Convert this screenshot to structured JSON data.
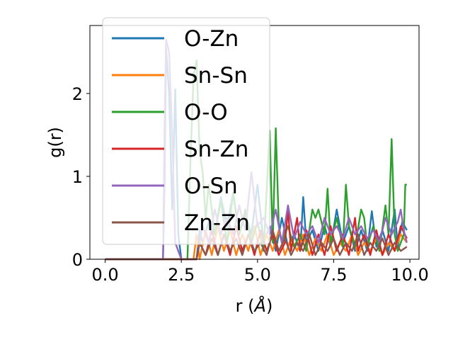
{
  "chart_data": {
    "type": "line",
    "xlabel": "r (",
    "xlabel_unit": "Å",
    "xlabel_close": ")",
    "ylabel": "g(r)",
    "xlim": [
      -0.5,
      10.3
    ],
    "ylim": [
      0,
      2.82
    ],
    "xticks": [
      0.0,
      2.5,
      5.0,
      7.5,
      10.0
    ],
    "xtick_labels": [
      "0.0",
      "2.5",
      "5.0",
      "7.5",
      "10.0"
    ],
    "yticks": [
      0,
      1,
      2
    ],
    "ytick_labels": [
      "0",
      "1",
      "2"
    ],
    "legend_position": "upper-left",
    "series": [
      {
        "name": "O-Zn",
        "color": "#1f77b4",
        "points": [
          [
            0,
            0
          ],
          [
            1.9,
            0
          ],
          [
            1.95,
            0.9
          ],
          [
            2.0,
            2.55
          ],
          [
            2.1,
            2.0
          ],
          [
            2.2,
            0.6
          ],
          [
            2.3,
            2.05
          ],
          [
            2.4,
            0.3
          ],
          [
            2.5,
            0
          ],
          [
            3.0,
            0
          ],
          [
            3.1,
            0.35
          ],
          [
            3.2,
            0.2
          ],
          [
            3.4,
            0.45
          ],
          [
            3.6,
            0.3
          ],
          [
            3.8,
            0.75
          ],
          [
            4.0,
            0.4
          ],
          [
            4.2,
            0.8
          ],
          [
            4.4,
            0.3
          ],
          [
            4.6,
            0.55
          ],
          [
            4.8,
            0.3
          ],
          [
            5.0,
            0.9
          ],
          [
            5.2,
            0.2
          ],
          [
            5.4,
            0.4
          ],
          [
            5.6,
            0.1
          ],
          [
            5.8,
            0.5
          ],
          [
            6.0,
            0.15
          ],
          [
            6.2,
            0.3
          ],
          [
            6.4,
            0.1
          ],
          [
            6.5,
            0.75
          ],
          [
            6.6,
            0.2
          ],
          [
            6.8,
            0.35
          ],
          [
            7.0,
            0.1
          ],
          [
            7.2,
            0.4
          ],
          [
            7.4,
            0.15
          ],
          [
            7.6,
            0.6
          ],
          [
            7.8,
            0.2
          ],
          [
            8.0,
            0.4
          ],
          [
            8.2,
            0.1
          ],
          [
            8.4,
            0.35
          ],
          [
            8.6,
            0.1
          ],
          [
            8.75,
            0.58
          ],
          [
            8.9,
            0.15
          ],
          [
            9.1,
            0.35
          ],
          [
            9.3,
            0.1
          ],
          [
            9.5,
            0.6
          ],
          [
            9.6,
            0.15
          ],
          [
            9.75,
            0.45
          ],
          [
            9.9,
            0.35
          ]
        ]
      },
      {
        "name": "Sn-Sn",
        "color": "#ff7f0e",
        "points": [
          [
            0,
            0
          ],
          [
            2.9,
            0
          ],
          [
            3.0,
            0.3
          ],
          [
            3.1,
            0
          ],
          [
            3.3,
            0.35
          ],
          [
            3.5,
            0.05
          ],
          [
            3.7,
            0.4
          ],
          [
            3.9,
            0.1
          ],
          [
            4.1,
            0.35
          ],
          [
            4.3,
            0.05
          ],
          [
            4.5,
            0.3
          ],
          [
            4.7,
            0.1
          ],
          [
            4.9,
            0.4
          ],
          [
            5.1,
            0.05
          ],
          [
            5.3,
            0.3
          ],
          [
            5.5,
            0.1
          ],
          [
            5.7,
            0.35
          ],
          [
            5.9,
            0.05
          ],
          [
            6.1,
            0.25
          ],
          [
            6.3,
            0.1
          ],
          [
            6.5,
            0.3
          ],
          [
            6.7,
            0.05
          ],
          [
            6.9,
            0.25
          ],
          [
            7.1,
            0.1
          ],
          [
            7.3,
            0.3
          ],
          [
            7.5,
            0.05
          ],
          [
            7.7,
            0.2
          ],
          [
            7.9,
            0.1
          ],
          [
            8.1,
            0.3
          ],
          [
            8.3,
            0.05
          ],
          [
            8.5,
            0.2
          ],
          [
            8.7,
            0.1
          ],
          [
            8.9,
            0.25
          ],
          [
            9.1,
            0.05
          ],
          [
            9.3,
            0.2
          ],
          [
            9.5,
            0.1
          ],
          [
            9.7,
            0.3
          ],
          [
            9.9,
            0.2
          ]
        ]
      },
      {
        "name": "O-O",
        "color": "#2ca02c",
        "points": [
          [
            0,
            0
          ],
          [
            2.7,
            0
          ],
          [
            2.8,
            1.2
          ],
          [
            2.9,
            2.2
          ],
          [
            3.0,
            2.4
          ],
          [
            3.1,
            1.3
          ],
          [
            3.2,
            1.05
          ],
          [
            3.3,
            0.5
          ],
          [
            3.4,
            0.9
          ],
          [
            3.6,
            0.3
          ],
          [
            3.8,
            0.7
          ],
          [
            4.0,
            0.2
          ],
          [
            4.2,
            0.8
          ],
          [
            4.4,
            0.3
          ],
          [
            4.6,
            0.6
          ],
          [
            4.8,
            0.2
          ],
          [
            5.0,
            0.45
          ],
          [
            5.2,
            0.1
          ],
          [
            5.4,
            1.55
          ],
          [
            5.5,
            0.2
          ],
          [
            5.6,
            1.58
          ],
          [
            5.7,
            0.4
          ],
          [
            5.8,
            0.2
          ],
          [
            6.0,
            0.4
          ],
          [
            6.2,
            0.15
          ],
          [
            6.4,
            0.3
          ],
          [
            6.6,
            0.1
          ],
          [
            6.8,
            0.6
          ],
          [
            6.9,
            0.5
          ],
          [
            7.0,
            0.6
          ],
          [
            7.2,
            0.3
          ],
          [
            7.3,
            0.85
          ],
          [
            7.4,
            0.2
          ],
          [
            7.6,
            0.5
          ],
          [
            7.8,
            0.15
          ],
          [
            7.9,
            0.9
          ],
          [
            8.0,
            0.4
          ],
          [
            8.2,
            0.15
          ],
          [
            8.4,
            0.6
          ],
          [
            8.5,
            0.5
          ],
          [
            8.6,
            0.15
          ],
          [
            8.8,
            0.4
          ],
          [
            9.0,
            0.1
          ],
          [
            9.2,
            0.65
          ],
          [
            9.3,
            0.3
          ],
          [
            9.4,
            1.45
          ],
          [
            9.5,
            0.3
          ],
          [
            9.6,
            0.1
          ],
          [
            9.8,
            0.3
          ],
          [
            9.85,
            0.9
          ],
          [
            9.9,
            0.9
          ]
        ]
      },
      {
        "name": "Sn-Zn",
        "color": "#d62728",
        "points": [
          [
            0,
            0
          ],
          [
            3.0,
            0
          ],
          [
            3.1,
            0.2
          ],
          [
            3.3,
            0.05
          ],
          [
            3.5,
            0.35
          ],
          [
            3.7,
            0.05
          ],
          [
            3.9,
            0.3
          ],
          [
            4.1,
            0.05
          ],
          [
            4.3,
            0.4
          ],
          [
            4.5,
            0.1
          ],
          [
            4.7,
            0.3
          ],
          [
            4.9,
            0.05
          ],
          [
            5.1,
            0.35
          ],
          [
            5.3,
            0.1
          ],
          [
            5.5,
            0.3
          ],
          [
            5.7,
            0.05
          ],
          [
            5.9,
            0.2
          ],
          [
            6.0,
            0.6
          ],
          [
            6.1,
            0.1
          ],
          [
            6.3,
            0.5
          ],
          [
            6.4,
            0.1
          ],
          [
            6.6,
            0.35
          ],
          [
            6.8,
            0.05
          ],
          [
            7.0,
            0.3
          ],
          [
            7.2,
            0.05
          ],
          [
            7.4,
            0.4
          ],
          [
            7.6,
            0.1
          ],
          [
            7.8,
            0.3
          ],
          [
            8.0,
            0.05
          ],
          [
            8.2,
            0.5
          ],
          [
            8.3,
            0.1
          ],
          [
            8.5,
            0.3
          ],
          [
            8.7,
            0.05
          ],
          [
            8.9,
            0.35
          ],
          [
            9.1,
            0.05
          ],
          [
            9.3,
            0.3
          ],
          [
            9.5,
            0.1
          ],
          [
            9.7,
            0.4
          ],
          [
            9.9,
            0.25
          ]
        ]
      },
      {
        "name": "O-Sn",
        "color": "#9467bd",
        "points": [
          [
            0,
            0
          ],
          [
            1.9,
            0
          ],
          [
            1.95,
            1.6
          ],
          [
            2.0,
            2.65
          ],
          [
            2.1,
            2.5
          ],
          [
            2.2,
            1.5
          ],
          [
            2.3,
            0.2
          ],
          [
            2.5,
            0
          ],
          [
            3.0,
            0
          ],
          [
            3.2,
            0.4
          ],
          [
            3.4,
            0.2
          ],
          [
            3.6,
            0.6
          ],
          [
            3.8,
            0.3
          ],
          [
            4.0,
            0.5
          ],
          [
            4.2,
            0.3
          ],
          [
            4.4,
            0.65
          ],
          [
            4.6,
            0.35
          ],
          [
            4.8,
            1.05
          ],
          [
            5.0,
            0.4
          ],
          [
            5.2,
            0.5
          ],
          [
            5.4,
            0.3
          ],
          [
            5.6,
            0.6
          ],
          [
            5.8,
            0.2
          ],
          [
            6.0,
            0.65
          ],
          [
            6.2,
            0.25
          ],
          [
            6.4,
            0.45
          ],
          [
            6.6,
            0.3
          ],
          [
            6.8,
            0.4
          ],
          [
            7.0,
            0.2
          ],
          [
            7.2,
            0.5
          ],
          [
            7.4,
            0.3
          ],
          [
            7.6,
            0.4
          ],
          [
            7.8,
            0.25
          ],
          [
            8.0,
            0.5
          ],
          [
            8.2,
            0.3
          ],
          [
            8.4,
            0.4
          ],
          [
            8.6,
            0.25
          ],
          [
            8.8,
            0.35
          ],
          [
            9.0,
            0.2
          ],
          [
            9.2,
            0.5
          ],
          [
            9.4,
            0.3
          ],
          [
            9.6,
            0.45
          ],
          [
            9.7,
            0.6
          ],
          [
            9.8,
            0.35
          ],
          [
            9.9,
            0.2
          ]
        ]
      },
      {
        "name": "Zn-Zn",
        "color": "#8c564b",
        "points": [
          [
            0,
            0
          ],
          [
            3.0,
            0
          ],
          [
            3.1,
            0.2
          ],
          [
            3.3,
            0.05
          ],
          [
            3.5,
            0.25
          ],
          [
            3.7,
            0.05
          ],
          [
            3.9,
            0.3
          ],
          [
            4.1,
            0.1
          ],
          [
            4.3,
            0.25
          ],
          [
            4.5,
            0.05
          ],
          [
            4.7,
            0.3
          ],
          [
            4.9,
            0.1
          ],
          [
            5.1,
            0.2
          ],
          [
            5.3,
            0.05
          ],
          [
            5.5,
            0.35
          ],
          [
            5.7,
            0.1
          ],
          [
            5.9,
            0.25
          ],
          [
            6.1,
            0.05
          ],
          [
            6.3,
            0.2
          ],
          [
            6.5,
            0.1
          ],
          [
            6.7,
            0.3
          ],
          [
            6.9,
            0.05
          ],
          [
            7.1,
            0.2
          ],
          [
            7.3,
            0.1
          ],
          [
            7.5,
            0.25
          ],
          [
            7.7,
            0.05
          ],
          [
            7.9,
            0.2
          ],
          [
            8.1,
            0.1
          ],
          [
            8.3,
            0.3
          ],
          [
            8.5,
            0.05
          ],
          [
            8.7,
            0.2
          ],
          [
            8.9,
            0.1
          ],
          [
            9.1,
            0.25
          ],
          [
            9.3,
            0.05
          ],
          [
            9.5,
            0.2
          ],
          [
            9.7,
            0.1
          ],
          [
            9.9,
            0.15
          ]
        ]
      }
    ]
  }
}
